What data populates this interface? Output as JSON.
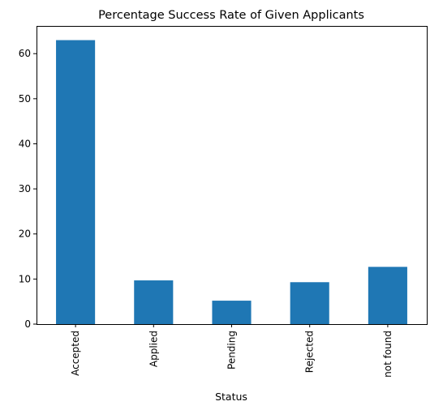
{
  "chart_data": {
    "type": "bar",
    "title": "Percentage Success Rate of Given Applicants",
    "xlabel": "Status",
    "ylabel": "",
    "categories": [
      "Accepted",
      "Applied",
      "Pending",
      "Rejected",
      "not found"
    ],
    "values": [
      63.0,
      9.7,
      5.2,
      9.3,
      12.7
    ],
    "ylim": [
      0,
      66.15
    ],
    "yticks": [
      0,
      10,
      20,
      30,
      40,
      50,
      60
    ],
    "bar_color": "#1f77b4",
    "grid": false,
    "legend": "none"
  }
}
